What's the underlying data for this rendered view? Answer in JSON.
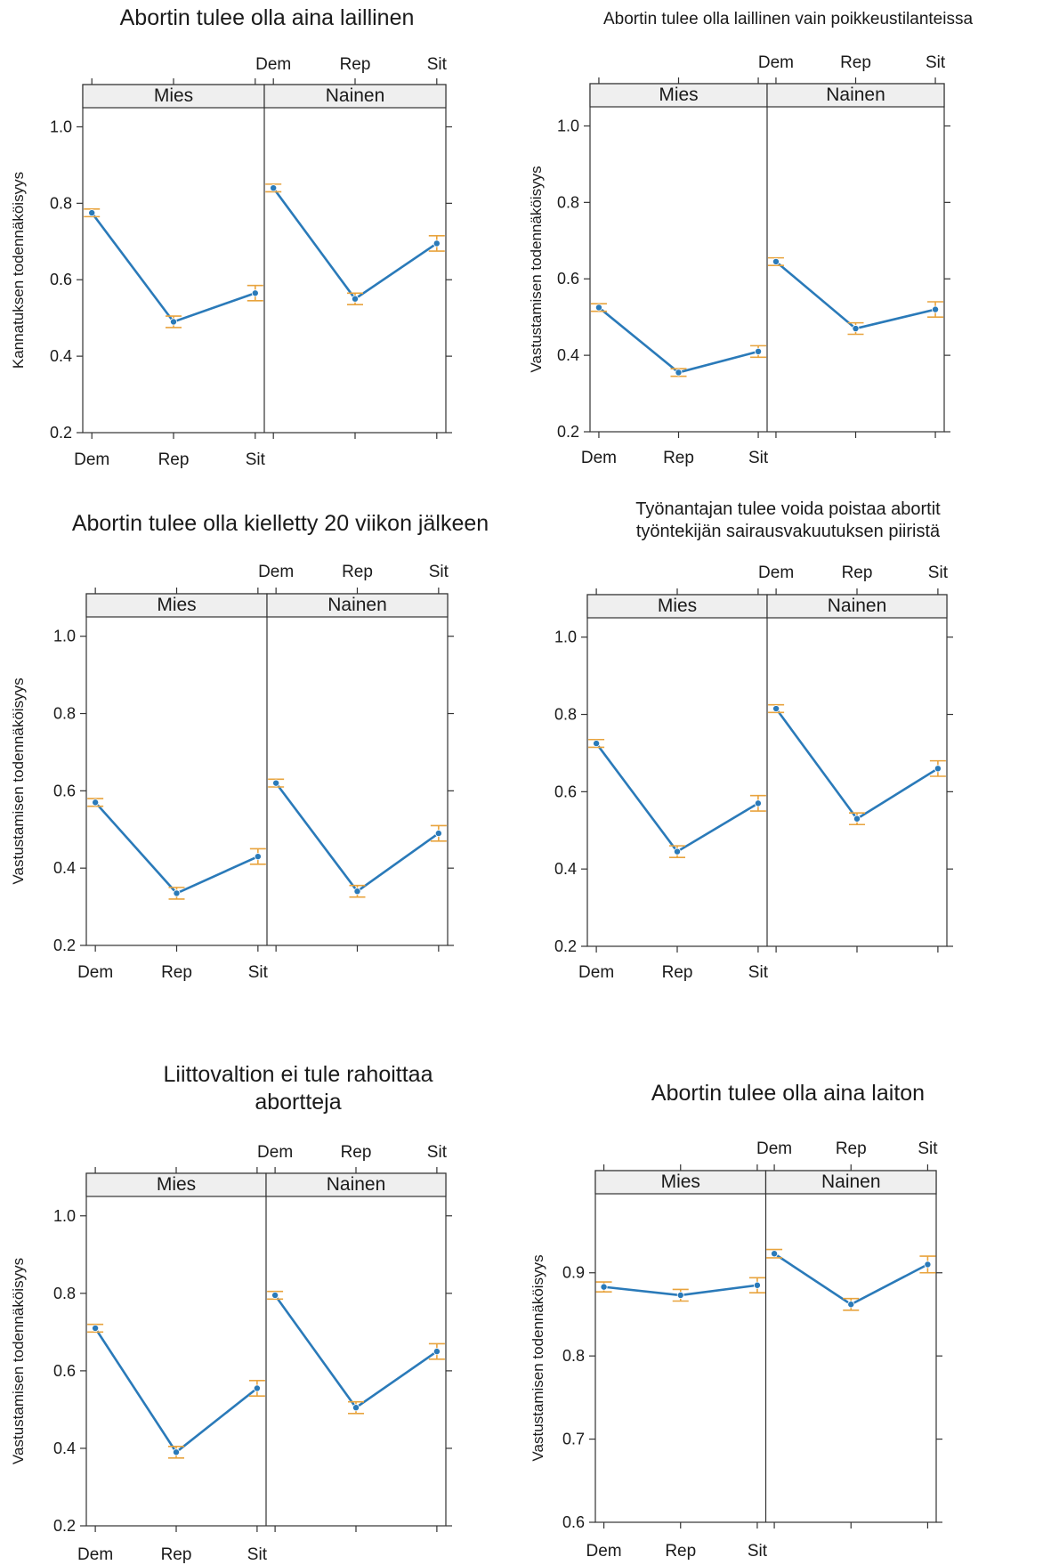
{
  "colors": {
    "line": "#2a7ab9",
    "error_bar": "#e8a33d",
    "strip": "#efefef",
    "axis": "#333333"
  },
  "chart_data": [
    {
      "type": "line",
      "title": "Abortin tulee olla aina laillinen",
      "ylabel": "Kannatuksen todennäköisyys",
      "categories": [
        "Dem",
        "Rep",
        "Sit"
      ],
      "panels": [
        "Mies",
        "Nainen"
      ],
      "ylim": [
        0.2,
        1.05
      ],
      "yticks": [
        0.2,
        0.4,
        0.6,
        0.8,
        1.0
      ],
      "grid": false,
      "series": [
        {
          "panel": "Mies",
          "values": [
            0.775,
            0.49,
            0.565
          ],
          "lower": [
            0.765,
            0.475,
            0.545
          ],
          "upper": [
            0.785,
            0.505,
            0.585
          ]
        },
        {
          "panel": "Nainen",
          "values": [
            0.84,
            0.55,
            0.695
          ],
          "lower": [
            0.83,
            0.535,
            0.675
          ],
          "upper": [
            0.85,
            0.565,
            0.715
          ]
        }
      ]
    },
    {
      "type": "line",
      "title": "Abortin tulee olla laillinen vain poikkeustilanteissa",
      "ylabel": "Vastustamisen todennäköisyys",
      "categories": [
        "Dem",
        "Rep",
        "Sit"
      ],
      "panels": [
        "Mies",
        "Nainen"
      ],
      "ylim": [
        0.2,
        1.05
      ],
      "yticks": [
        0.2,
        0.4,
        0.6,
        0.8,
        1.0
      ],
      "grid": false,
      "series": [
        {
          "panel": "Mies",
          "values": [
            0.525,
            0.355,
            0.41
          ],
          "lower": [
            0.515,
            0.345,
            0.395
          ],
          "upper": [
            0.535,
            0.365,
            0.425
          ]
        },
        {
          "panel": "Nainen",
          "values": [
            0.645,
            0.47,
            0.52
          ],
          "lower": [
            0.635,
            0.455,
            0.5
          ],
          "upper": [
            0.655,
            0.485,
            0.54
          ]
        }
      ]
    },
    {
      "type": "line",
      "title": "Abortin tulee olla kielletty 20 viikon jälkeen",
      "ylabel": "Vastustamisen todennäköisyys",
      "categories": [
        "Dem",
        "Rep",
        "Sit"
      ],
      "panels": [
        "Mies",
        "Nainen"
      ],
      "ylim": [
        0.2,
        1.05
      ],
      "yticks": [
        0.2,
        0.4,
        0.6,
        0.8,
        1.0
      ],
      "grid": false,
      "series": [
        {
          "panel": "Mies",
          "values": [
            0.57,
            0.335,
            0.43
          ],
          "lower": [
            0.56,
            0.32,
            0.41
          ],
          "upper": [
            0.58,
            0.35,
            0.45
          ]
        },
        {
          "panel": "Nainen",
          "values": [
            0.62,
            0.34,
            0.49
          ],
          "lower": [
            0.61,
            0.325,
            0.47
          ],
          "upper": [
            0.63,
            0.355,
            0.51
          ]
        }
      ]
    },
    {
      "type": "line",
      "title": "Työnantajan tulee voida poistaa abortit\ntyöntekijän sairausvakuutuksen piiristä",
      "ylabel": "",
      "categories": [
        "Dem",
        "Rep",
        "Sit"
      ],
      "panels": [
        "Mies",
        "Nainen"
      ],
      "ylim": [
        0.2,
        1.05
      ],
      "yticks": [
        0.2,
        0.4,
        0.6,
        0.8,
        1.0
      ],
      "grid": false,
      "series": [
        {
          "panel": "Mies",
          "values": [
            0.725,
            0.445,
            0.57
          ],
          "lower": [
            0.715,
            0.43,
            0.55
          ],
          "upper": [
            0.735,
            0.46,
            0.59
          ]
        },
        {
          "panel": "Nainen",
          "values": [
            0.815,
            0.53,
            0.66
          ],
          "lower": [
            0.805,
            0.515,
            0.64
          ],
          "upper": [
            0.825,
            0.545,
            0.68
          ]
        }
      ]
    },
    {
      "type": "line",
      "title": "Liittovaltion ei tule rahoittaa\nabortteja",
      "ylabel": "Vastustamisen todennäköisyys",
      "categories": [
        "Dem",
        "Rep",
        "Sit"
      ],
      "panels": [
        "Mies",
        "Nainen"
      ],
      "ylim": [
        0.2,
        1.05
      ],
      "yticks": [
        0.2,
        0.4,
        0.6,
        0.8,
        1.0
      ],
      "grid": false,
      "series": [
        {
          "panel": "Mies",
          "values": [
            0.71,
            0.39,
            0.555
          ],
          "lower": [
            0.7,
            0.375,
            0.535
          ],
          "upper": [
            0.72,
            0.405,
            0.575
          ]
        },
        {
          "panel": "Nainen",
          "values": [
            0.795,
            0.505,
            0.65
          ],
          "lower": [
            0.785,
            0.49,
            0.63
          ],
          "upper": [
            0.805,
            0.52,
            0.67
          ]
        }
      ]
    },
    {
      "type": "line",
      "title": "Abortin tulee olla aina laiton",
      "ylabel": "Vastustamisen todennäköisyys",
      "categories": [
        "Dem",
        "Rep",
        "Sit"
      ],
      "panels": [
        "Mies",
        "Nainen"
      ],
      "ylim": [
        0.6,
        0.995
      ],
      "yticks": [
        0.6,
        0.7,
        0.8,
        0.9
      ],
      "grid": false,
      "series": [
        {
          "panel": "Mies",
          "values": [
            0.883,
            0.873,
            0.885
          ],
          "lower": [
            0.877,
            0.866,
            0.876
          ],
          "upper": [
            0.889,
            0.88,
            0.894
          ]
        },
        {
          "panel": "Nainen",
          "values": [
            0.923,
            0.862,
            0.91
          ],
          "lower": [
            0.918,
            0.855,
            0.9
          ],
          "upper": [
            0.928,
            0.869,
            0.92
          ]
        }
      ]
    }
  ]
}
